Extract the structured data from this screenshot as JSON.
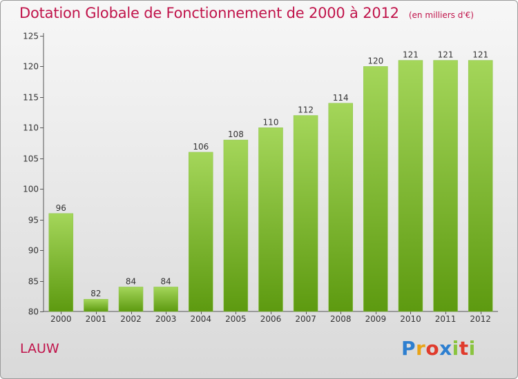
{
  "header": {
    "title": "Dotation Globale de Fonctionnement de 2000 à 2012",
    "unit": "(en milliers d'€)"
  },
  "footer": {
    "commune": "LAUW",
    "logo_letters": [
      "P",
      "r",
      "o",
      "x",
      "i",
      "t",
      "i"
    ]
  },
  "colors": {
    "title": "#c0134a",
    "bar_light": "#a4d65a",
    "bar_dark": "#5d9a10"
  },
  "chart_data": {
    "type": "bar",
    "title": "Dotation Globale de Fonctionnement de 2000 à 2012",
    "subtitle": "(en milliers d'€)",
    "xlabel": "",
    "ylabel": "",
    "categories": [
      "2000",
      "2001",
      "2002",
      "2003",
      "2004",
      "2005",
      "2006",
      "2007",
      "2008",
      "2009",
      "2010",
      "2011",
      "2012"
    ],
    "values": [
      96,
      82,
      84,
      84,
      106,
      108,
      110,
      112,
      114,
      120,
      121,
      121,
      121
    ],
    "ylim": [
      80,
      125
    ],
    "yticks": [
      80,
      85,
      90,
      95,
      100,
      105,
      110,
      115,
      120,
      125
    ],
    "grid": false,
    "data_labels": true
  }
}
